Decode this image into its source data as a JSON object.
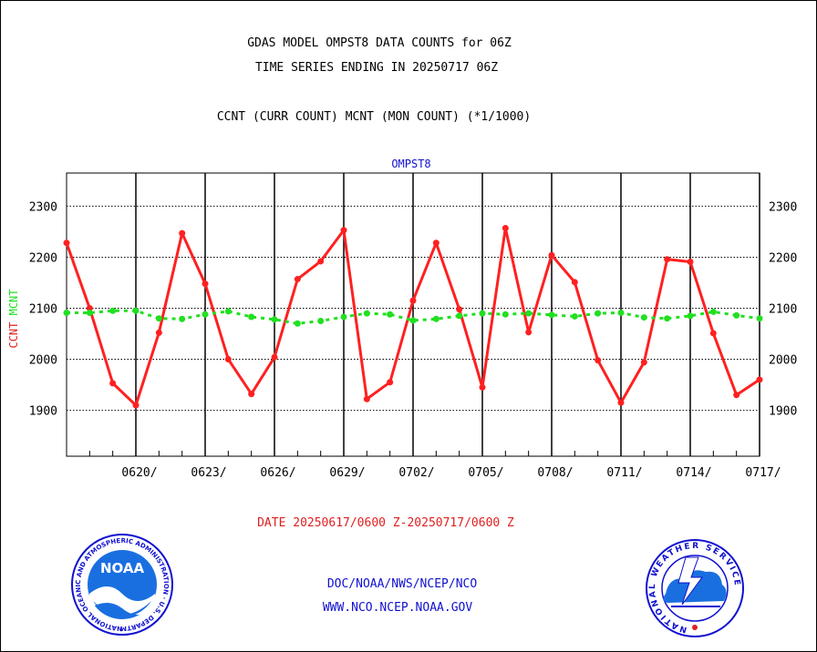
{
  "header": {
    "title_line1": "GDAS MODEL OMPST8 DATA COUNTS for 06Z",
    "title_line2": "TIME SERIES ENDING IN 20250717 06Z",
    "subtitle": "CCNT (CURR COUNT) MCNT (MON COUNT) (*1/1000)"
  },
  "footer": {
    "date_range": "DATE 20250617/0600 Z-20250717/0600 Z",
    "org_path": "DOC/NOAA/NWS/NCEP/NCO",
    "website": "WWW.NCO.NCEP.NOAA.GOV"
  },
  "logos": {
    "left": {
      "center_text": "NOAA",
      "ring_text": "NATIONAL OCEANIC AND ATMOSPHERIC ADMINISTRATION · U.S. DEPARTMENT OF COMMERCE ·",
      "icon": "noaa-logo-icon"
    },
    "right": {
      "ring_text": "NATIONAL WEATHER SERVICE",
      "icon": "nws-logo-icon"
    }
  },
  "colors": {
    "ccnt": "#ff2020",
    "mcnt": "#20e020",
    "label_blue": "#1010d0"
  },
  "chart_data": {
    "type": "line",
    "title": "OMPST8",
    "ylabel_parts": [
      {
        "text": "CCNT",
        "color": "#e02020"
      },
      {
        "text": "MCNT",
        "color": "#20e020"
      }
    ],
    "x_start": "2025-06-17",
    "x_end": "2025-07-17",
    "xlim": [
      "2025-06-17",
      "2025-07-17"
    ],
    "ylim": [
      1810,
      2365
    ],
    "yticks": [
      1900,
      2000,
      2100,
      2200,
      2300
    ],
    "ytick_labels": [
      "1900",
      "2000",
      "2100",
      "2200",
      "2300"
    ],
    "xticks": [
      {
        "date": "2025-06-20",
        "label": "0620/"
      },
      {
        "date": "2025-06-23",
        "label": "0623/"
      },
      {
        "date": "2025-06-26",
        "label": "0626/"
      },
      {
        "date": "2025-06-29",
        "label": "0629/"
      },
      {
        "date": "2025-07-02",
        "label": "0702/"
      },
      {
        "date": "2025-07-05",
        "label": "0705/"
      },
      {
        "date": "2025-07-08",
        "label": "0708/"
      },
      {
        "date": "2025-07-11",
        "label": "0711/"
      },
      {
        "date": "2025-07-14",
        "label": "0714/"
      },
      {
        "date": "2025-07-17",
        "label": "0717/"
      }
    ],
    "grid": true,
    "x": [
      "2025-06-17",
      "2025-06-18",
      "2025-06-19",
      "2025-06-20",
      "2025-06-21",
      "2025-06-22",
      "2025-06-23",
      "2025-06-24",
      "2025-06-25",
      "2025-06-26",
      "2025-06-27",
      "2025-06-28",
      "2025-06-29",
      "2025-06-30",
      "2025-07-01",
      "2025-07-02",
      "2025-07-03",
      "2025-07-04",
      "2025-07-05",
      "2025-07-06",
      "2025-07-07",
      "2025-07-08",
      "2025-07-09",
      "2025-07-10",
      "2025-07-11",
      "2025-07-12",
      "2025-07-13",
      "2025-07-14",
      "2025-07-15",
      "2025-07-16",
      "2025-07-17"
    ],
    "series": [
      {
        "name": "CCNT",
        "color": "#ff2020",
        "values": [
          2228,
          2100,
          1953,
          1910,
          2052,
          2247,
          2148,
          2000,
          1932,
          2004,
          2157,
          2192,
          2253,
          1922,
          1955,
          2115,
          2228,
          2098,
          1945,
          2257,
          2053,
          2204,
          2151,
          1998,
          1915,
          1994,
          2196,
          2191,
          2051,
          1930,
          1960
        ]
      },
      {
        "name": "MCNT",
        "color": "#20e020",
        "values": [
          2091,
          2091,
          2095,
          2095,
          2080,
          2079,
          2088,
          2094,
          2083,
          2078,
          2070,
          2075,
          2083,
          2090,
          2088,
          2076,
          2079,
          2085,
          2090,
          2088,
          2090,
          2087,
          2084,
          2090,
          2091,
          2082,
          2080,
          2085,
          2093,
          2086,
          2080
        ]
      }
    ]
  }
}
